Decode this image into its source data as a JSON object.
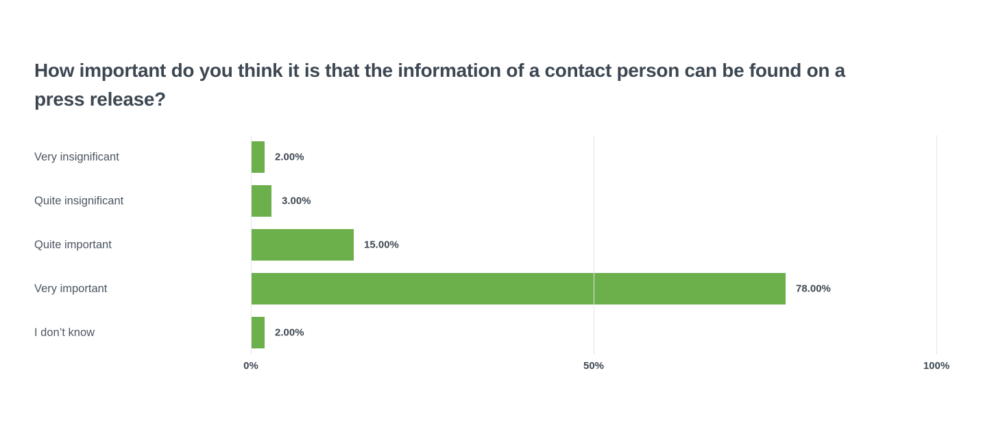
{
  "page": {
    "background_color": "#ffffff"
  },
  "chart_data": {
    "type": "bar",
    "orientation": "horizontal",
    "title": "How important do you think it is that the information of a contact person can be found on a press release?",
    "categories": [
      "Very insignificant",
      "Quite insignificant",
      "Quite important",
      "Very important",
      "I don’t know"
    ],
    "values": [
      2,
      3,
      15,
      78,
      2
    ],
    "value_labels": [
      "2.00%",
      "3.00%",
      "15.00%",
      "78.00%",
      "2.00%"
    ],
    "xlabel": "",
    "ylabel": "",
    "xlim": [
      0,
      100
    ],
    "x_ticks": [
      {
        "label": "0%",
        "value": 0
      },
      {
        "label": "50%",
        "value": 50
      },
      {
        "label": "100%",
        "value": 100
      }
    ],
    "grid": "vertical-only",
    "legend": "none",
    "bar_color": "#6cb04c",
    "gridline_color": "#e5e5e5",
    "title_color": "#3d4752",
    "label_color": "#4c5561",
    "value_label_color": "#3d4752"
  }
}
